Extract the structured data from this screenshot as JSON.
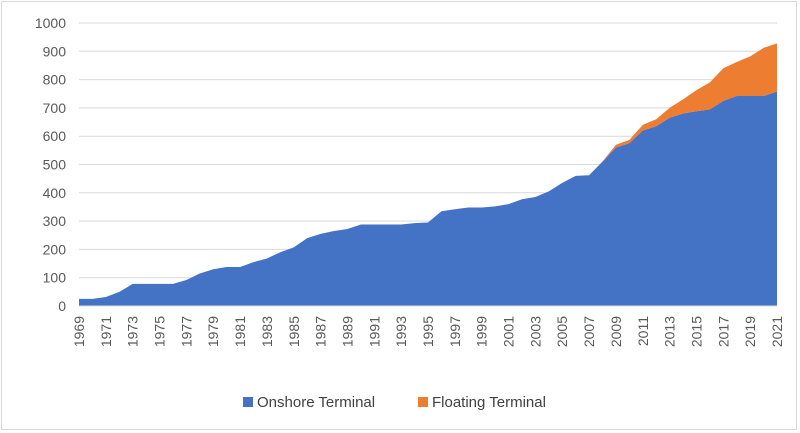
{
  "chart_data": {
    "type": "area",
    "stacked": true,
    "x": [
      1969,
      1970,
      1971,
      1972,
      1973,
      1974,
      1975,
      1976,
      1977,
      1978,
      1979,
      1980,
      1981,
      1982,
      1983,
      1984,
      1985,
      1986,
      1987,
      1988,
      1989,
      1990,
      1991,
      1992,
      1993,
      1994,
      1995,
      1996,
      1997,
      1998,
      1999,
      2000,
      2001,
      2002,
      2003,
      2004,
      2005,
      2006,
      2007,
      2008,
      2009,
      2010,
      2011,
      2012,
      2013,
      2014,
      2015,
      2016,
      2017,
      2018,
      2019,
      2020,
      2021
    ],
    "x_tick_labels": [
      "1969",
      "1971",
      "1973",
      "1975",
      "1977",
      "1979",
      "1981",
      "1983",
      "1985",
      "1987",
      "1989",
      "1991",
      "1993",
      "1995",
      "1997",
      "1999",
      "2001",
      "2003",
      "2005",
      "2007",
      "2009",
      "2011",
      "2013",
      "2015",
      "2017",
      "2019",
      "2021"
    ],
    "series": [
      {
        "name": "Onshore Terminal",
        "color": "#4472c4",
        "values": [
          25,
          25,
          32,
          50,
          78,
          78,
          78,
          78,
          92,
          115,
          130,
          138,
          138,
          155,
          168,
          190,
          207,
          240,
          255,
          265,
          272,
          288,
          288,
          288,
          288,
          293,
          295,
          335,
          342,
          348,
          348,
          352,
          360,
          377,
          385,
          405,
          435,
          460,
          462,
          510,
          560,
          575,
          620,
          635,
          665,
          680,
          688,
          695,
          725,
          742,
          742,
          742,
          758
        ]
      },
      {
        "name": "Floating Terminal",
        "color": "#ed7d31",
        "values": [
          0,
          0,
          0,
          0,
          0,
          0,
          0,
          0,
          0,
          0,
          0,
          0,
          0,
          0,
          0,
          0,
          0,
          0,
          0,
          0,
          0,
          0,
          0,
          0,
          0,
          0,
          0,
          0,
          0,
          0,
          0,
          0,
          0,
          0,
          0,
          0,
          0,
          0,
          0,
          0,
          10,
          12,
          20,
          25,
          35,
          50,
          75,
          95,
          115,
          120,
          140,
          170,
          170
        ]
      }
    ],
    "ylim": [
      0,
      1000
    ],
    "y_ticks": [
      0,
      100,
      200,
      300,
      400,
      500,
      600,
      700,
      800,
      900,
      1000
    ],
    "grid": "horizontal",
    "legend": "bottom"
  }
}
